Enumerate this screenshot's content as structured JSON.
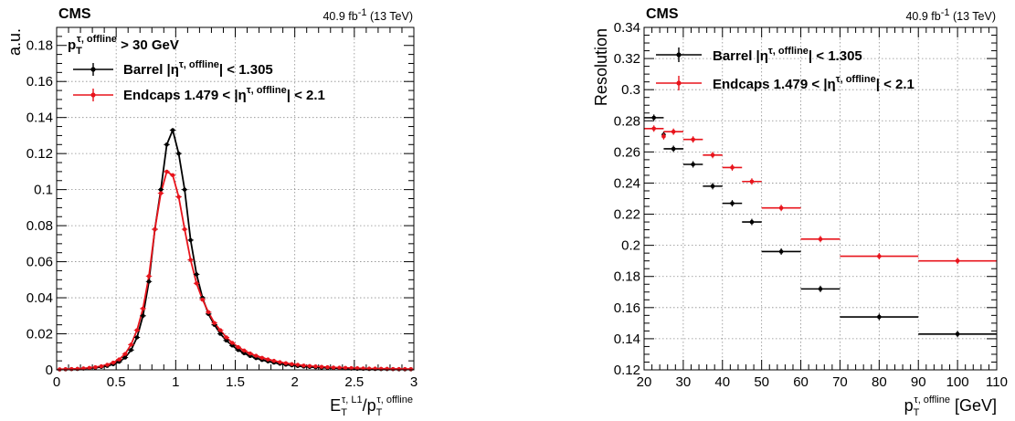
{
  "chart_data": [
    {
      "type": "scatter",
      "cms_label": "CMS",
      "lumi_value": "40.9 fb",
      "lumi_exp": "-1",
      "lumi_energy": " (13 TeV)",
      "xlabel": {
        "main": "E",
        "sub": "T",
        "sup": "τ, L1",
        "slash": "/p",
        "sub2": "T",
        "sup2": "τ, offline"
      },
      "ylabel": "a.u.",
      "xlim": [
        0,
        3
      ],
      "ylim": [
        0,
        0.19
      ],
      "xticks": [
        0,
        0.5,
        1,
        1.5,
        2,
        2.5,
        3
      ],
      "xtick_labels": [
        "0",
        "0.5",
        "1",
        "1.5",
        "2",
        "2.5",
        "3"
      ],
      "yticks": [
        0,
        0.02,
        0.04,
        0.06,
        0.08,
        0.1,
        0.12,
        0.14,
        0.16,
        0.18
      ],
      "ytick_labels": [
        "0",
        "0.02",
        "0.04",
        "0.06",
        "0.08",
        "0.1",
        "0.12",
        "0.14",
        "0.16",
        "0.18"
      ],
      "grid": true,
      "legend": {
        "header_p": "p",
        "header_sub": "T",
        "header_sup": "τ, offline",
        "header_rest": " > 30 GeV",
        "entries": [
          {
            "pre": "Barrel |η",
            "sup": "τ, offline",
            "post": "| < 1.305",
            "color": "#000000"
          },
          {
            "pre": "Endcaps 1.479 < |η",
            "sup": "τ, offline",
            "post": "| < 2.1",
            "color": "#e8141c"
          }
        ]
      },
      "series": [
        {
          "name": "Barrel",
          "color": "#000000",
          "x": [
            0.025,
            0.075,
            0.125,
            0.175,
            0.225,
            0.275,
            0.325,
            0.375,
            0.425,
            0.475,
            0.525,
            0.575,
            0.625,
            0.675,
            0.725,
            0.775,
            0.825,
            0.875,
            0.925,
            0.975,
            1.025,
            1.075,
            1.125,
            1.175,
            1.225,
            1.275,
            1.325,
            1.375,
            1.425,
            1.475,
            1.525,
            1.575,
            1.625,
            1.675,
            1.725,
            1.775,
            1.825,
            1.875,
            1.925,
            1.975,
            2.025,
            2.075,
            2.125,
            2.175,
            2.225,
            2.275,
            2.325,
            2.375,
            2.425,
            2.475,
            2.525,
            2.575,
            2.625,
            2.675,
            2.725,
            2.775,
            2.825,
            2.875,
            2.925,
            2.975
          ],
          "y": [
            0.0002,
            0.0003,
            0.0004,
            0.0005,
            0.0007,
            0.0009,
            0.0012,
            0.0016,
            0.0022,
            0.0031,
            0.0045,
            0.0068,
            0.011,
            0.018,
            0.03,
            0.049,
            0.078,
            0.1,
            0.125,
            0.133,
            0.12,
            0.1,
            0.072,
            0.053,
            0.04,
            0.031,
            0.025,
            0.02,
            0.0163,
            0.0135,
            0.011,
            0.0092,
            0.0077,
            0.0065,
            0.0055,
            0.0047,
            0.004,
            0.0034,
            0.0029,
            0.0025,
            0.0021,
            0.0018,
            0.0016,
            0.0014,
            0.0012,
            0.0011,
            0.001,
            0.0009,
            0.0008,
            0.0007,
            0.0006,
            0.0006,
            0.0005,
            0.0005,
            0.0004,
            0.0004,
            0.0004,
            0.0003,
            0.0003,
            0.0003
          ]
        },
        {
          "name": "Endcaps",
          "color": "#e8141c",
          "x": [
            0.025,
            0.075,
            0.125,
            0.175,
            0.225,
            0.275,
            0.325,
            0.375,
            0.425,
            0.475,
            0.525,
            0.575,
            0.625,
            0.675,
            0.725,
            0.775,
            0.825,
            0.875,
            0.925,
            0.975,
            1.025,
            1.075,
            1.125,
            1.175,
            1.225,
            1.275,
            1.325,
            1.375,
            1.425,
            1.475,
            1.525,
            1.575,
            1.625,
            1.675,
            1.725,
            1.775,
            1.825,
            1.875,
            1.925,
            1.975,
            2.025,
            2.075,
            2.125,
            2.175,
            2.225,
            2.275,
            2.325,
            2.375,
            2.425,
            2.475,
            2.525,
            2.575,
            2.625,
            2.675,
            2.725,
            2.775,
            2.825,
            2.875,
            2.925,
            2.975
          ],
          "y": [
            0.0003,
            0.0004,
            0.0005,
            0.0006,
            0.0008,
            0.0011,
            0.0015,
            0.002,
            0.0028,
            0.004,
            0.0058,
            0.0088,
            0.014,
            0.022,
            0.034,
            0.052,
            0.078,
            0.098,
            0.11,
            0.108,
            0.096,
            0.078,
            0.061,
            0.048,
            0.039,
            0.032,
            0.026,
            0.022,
            0.018,
            0.015,
            0.0126,
            0.0107,
            0.0091,
            0.0078,
            0.0067,
            0.0058,
            0.005,
            0.0043,
            0.0037,
            0.0032,
            0.0028,
            0.0024,
            0.0021,
            0.0019,
            0.0017,
            0.0015,
            0.0013,
            0.0012,
            0.0011,
            0.001,
            0.0009,
            0.0008,
            0.0007,
            0.0007,
            0.0006,
            0.0006,
            0.0005,
            0.0005,
            0.0005,
            0.0004
          ]
        }
      ]
    },
    {
      "type": "scatter",
      "cms_label": "CMS",
      "lumi_value": "40.9 fb",
      "lumi_exp": "-1",
      "lumi_energy": " (13 TeV)",
      "xlabel": {
        "main": "p",
        "sub": "T",
        "sup": "τ, offline",
        "rest": " [GeV]"
      },
      "ylabel": "Resolution",
      "xlim": [
        20,
        110
      ],
      "ylim": [
        0.12,
        0.34
      ],
      "xticks": [
        20,
        30,
        40,
        50,
        60,
        70,
        80,
        90,
        100,
        110
      ],
      "xtick_labels": [
        "20",
        "30",
        "40",
        "50",
        "60",
        "70",
        "80",
        "90",
        "100",
        "110"
      ],
      "yticks": [
        0.12,
        0.14,
        0.16,
        0.18,
        0.2,
        0.22,
        0.24,
        0.26,
        0.28,
        0.3,
        0.32,
        0.34
      ],
      "ytick_labels": [
        "0.12",
        "0.14",
        "0.16",
        "0.18",
        "0.2",
        "0.22",
        "0.24",
        "0.26",
        "0.28",
        "0.3",
        "0.32",
        "0.34"
      ],
      "grid": true,
      "legend": {
        "entries": [
          {
            "pre": "Barrel |η",
            "sup": "τ, offline",
            "post": "| < 1.305",
            "color": "#000000"
          },
          {
            "pre": "Endcaps 1.479 < |η",
            "sup": "τ, offline",
            "post": "| < 2.1",
            "color": "#e8141c"
          }
        ]
      },
      "series": [
        {
          "name": "Barrel",
          "color": "#000000",
          "x": [
            22.5,
            25,
            27.5,
            32.5,
            37.5,
            42.5,
            47.5,
            55,
            65,
            80,
            100
          ],
          "xerr": [
            2.5,
            0,
            2.5,
            2.5,
            2.5,
            2.5,
            2.5,
            5,
            5,
            10,
            10
          ],
          "y": [
            0.282,
            0.271,
            0.262,
            0.252,
            0.238,
            0.227,
            0.215,
            0.196,
            0.172,
            0.154,
            0.143
          ]
        },
        {
          "name": "Endcaps",
          "color": "#e8141c",
          "x": [
            22.5,
            25,
            27.5,
            32.5,
            37.5,
            42.5,
            47.5,
            55,
            65,
            80,
            100
          ],
          "xerr": [
            2.5,
            0,
            2.5,
            2.5,
            2.5,
            2.5,
            2.5,
            5,
            5,
            10,
            10
          ],
          "y": [
            0.275,
            0.27,
            0.273,
            0.268,
            0.258,
            0.25,
            0.241,
            0.224,
            0.204,
            0.193,
            0.19
          ]
        }
      ]
    }
  ]
}
